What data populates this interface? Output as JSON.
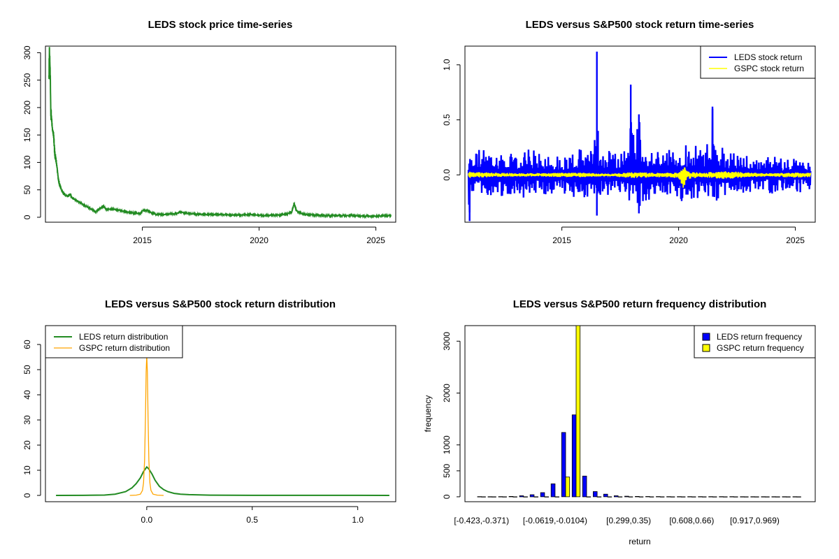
{
  "chart_data": [
    {
      "type": "line",
      "title": "LEDS stock price time-series",
      "xlabel": "",
      "ylabel": "",
      "xlim": [
        2010.85,
        2025.85
      ],
      "ylim": [
        -9,
        312
      ],
      "x_ticks": [
        2015,
        2020,
        2025
      ],
      "x_tick_labels": [
        "2015",
        "2020",
        "2025"
      ],
      "y_ticks": [
        0,
        50,
        100,
        150,
        200,
        250,
        300
      ],
      "y_tick_labels": [
        "0",
        "50",
        "100",
        "150",
        "200",
        "250",
        "300"
      ],
      "grid": false,
      "series": [
        {
          "color": "#228B22",
          "x": [
            2011.0,
            2011.02,
            2011.04,
            2011.06,
            2011.08,
            2011.1,
            2011.12,
            2011.15,
            2011.2,
            2011.25,
            2011.3,
            2011.35,
            2011.4,
            2011.45,
            2011.5,
            2011.55,
            2011.6,
            2011.7,
            2011.8,
            2011.9,
            2012.0,
            2012.2,
            2012.4,
            2012.6,
            2012.8,
            2013.0,
            2013.3,
            2013.5,
            2013.7,
            2014.0,
            2014.3,
            2014.6,
            2014.9,
            2015.0,
            2015.2,
            2015.4,
            2015.6,
            2015.9,
            2016.2,
            2016.5,
            2016.6,
            2016.9,
            2017.3,
            2017.7,
            2018.0,
            2018.4,
            2018.8,
            2019.2,
            2019.6,
            2020.0,
            2020.2,
            2020.6,
            2020.9,
            2021.2,
            2021.4,
            2021.5,
            2021.6,
            2021.8,
            2022.0,
            2022.5,
            2023.0,
            2023.5,
            2024.0,
            2024.5,
            2025.0,
            2025.5,
            2025.65
          ],
          "y": [
            250,
            305,
            285,
            250,
            190,
            185,
            175,
            160,
            150,
            115,
            105,
            90,
            70,
            60,
            55,
            48,
            45,
            40,
            38,
            42,
            35,
            30,
            25,
            20,
            15,
            10,
            20,
            14,
            15,
            13,
            10,
            8,
            6,
            12,
            13,
            8,
            5,
            5,
            6,
            7,
            10,
            7,
            6,
            5,
            5,
            5,
            4,
            4,
            5,
            4,
            3,
            4,
            4,
            6,
            10,
            25,
            12,
            7,
            5,
            4,
            3,
            3,
            3,
            2,
            2,
            3,
            3
          ]
        }
      ]
    },
    {
      "type": "line",
      "title": "LEDS versus S&P500 stock return time-series",
      "xlabel": "",
      "ylabel": "",
      "xlim": [
        2010.85,
        2025.85
      ],
      "ylim": [
        -0.43,
        1.17
      ],
      "x_ticks": [
        2015,
        2020,
        2025
      ],
      "x_tick_labels": [
        "2015",
        "2020",
        "2025"
      ],
      "y_ticks": [
        0.0,
        0.5,
        1.0
      ],
      "y_tick_labels": [
        "0.0",
        "0.5",
        "1.0"
      ],
      "grid": false,
      "legend": {
        "position": "top-right"
      },
      "series": [
        {
          "name": "LEDS stock return",
          "color": "#0000FF",
          "x": [
            2011.0,
            2011.05,
            2011.1,
            2011.2,
            2011.4,
            2011.7,
            2012.0,
            2012.5,
            2013.0,
            2013.5,
            2014.0,
            2014.5,
            2015.0,
            2015.5,
            2016.0,
            2016.4,
            2016.5,
            2016.55,
            2016.6,
            2017.0,
            2017.5,
            2017.9,
            2017.95,
            2018.0,
            2018.3,
            2018.5,
            2019.0,
            2019.5,
            2020.0,
            2020.2,
            2020.5,
            2021.0,
            2021.4,
            2021.45,
            2021.5,
            2022.0,
            2022.5,
            2023.0,
            2023.5,
            2024.0,
            2024.5,
            2025.0,
            2025.5,
            2025.65
          ],
          "pos_env": [
            0.15,
            0.2,
            0.18,
            0.22,
            0.25,
            0.24,
            0.2,
            0.22,
            0.18,
            0.24,
            0.22,
            0.2,
            0.18,
            0.22,
            0.25,
            0.3,
            1.12,
            0.4,
            0.2,
            0.25,
            0.22,
            0.3,
            0.82,
            0.38,
            0.55,
            0.25,
            0.22,
            0.25,
            0.2,
            0.28,
            0.3,
            0.25,
            0.35,
            0.62,
            0.3,
            0.25,
            0.22,
            0.2,
            0.15,
            0.18,
            0.15,
            0.16,
            0.12,
            0.12
          ],
          "neg_env": [
            -0.2,
            -0.42,
            -0.2,
            -0.18,
            -0.2,
            -0.22,
            -0.18,
            -0.2,
            -0.18,
            -0.22,
            -0.2,
            -0.18,
            -0.17,
            -0.2,
            -0.22,
            -0.25,
            -0.37,
            -0.3,
            -0.22,
            -0.2,
            -0.22,
            -0.25,
            -0.28,
            -0.24,
            -0.35,
            -0.25,
            -0.22,
            -0.2,
            -0.25,
            -0.3,
            -0.25,
            -0.22,
            -0.25,
            -0.28,
            -0.24,
            -0.22,
            -0.2,
            -0.18,
            -0.16,
            -0.17,
            -0.15,
            -0.17,
            -0.15,
            -0.14
          ]
        },
        {
          "name": "GSPC stock return",
          "color": "#FFFF00",
          "x": [
            2011.0,
            2012.0,
            2013.0,
            2014.0,
            2015.0,
            2016.0,
            2017.0,
            2018.0,
            2019.0,
            2020.0,
            2020.2,
            2020.4,
            2021.0,
            2022.0,
            2022.5,
            2023.0,
            2024.0,
            2025.0,
            2025.65
          ],
          "pos_env": [
            0.03,
            0.02,
            0.015,
            0.015,
            0.02,
            0.02,
            0.01,
            0.025,
            0.02,
            0.02,
            0.09,
            0.03,
            0.02,
            0.035,
            0.03,
            0.02,
            0.015,
            0.02,
            0.02
          ],
          "neg_env": [
            -0.03,
            -0.02,
            -0.015,
            -0.015,
            -0.02,
            -0.02,
            -0.01,
            -0.03,
            -0.02,
            -0.03,
            -0.12,
            -0.04,
            -0.02,
            -0.04,
            -0.03,
            -0.02,
            -0.015,
            -0.025,
            -0.02
          ]
        }
      ]
    },
    {
      "type": "line",
      "title": "LEDS versus S&P500 stock return distribution",
      "xlabel": "",
      "ylabel": "",
      "xlim": [
        -0.48,
        1.18
      ],
      "ylim": [
        -2.5,
        67.5
      ],
      "x_ticks": [
        0.0,
        0.5,
        1.0
      ],
      "x_tick_labels": [
        "0.0",
        "0.5",
        "1.0"
      ],
      "y_ticks": [
        0,
        10,
        20,
        30,
        40,
        50,
        60
      ],
      "y_tick_labels": [
        "0",
        "10",
        "20",
        "30",
        "40",
        "50",
        "60"
      ],
      "grid": false,
      "legend": {
        "position": "top-left"
      },
      "series": [
        {
          "name": "LEDS return distribution",
          "color": "#228B22",
          "x": [
            -0.43,
            -0.3,
            -0.2,
            -0.15,
            -0.1,
            -0.07,
            -0.05,
            -0.03,
            -0.015,
            0.0,
            0.01,
            0.025,
            0.04,
            0.06,
            0.08,
            0.1,
            0.13,
            0.16,
            0.2,
            0.3,
            0.5,
            0.8,
            1.0,
            1.15
          ],
          "y": [
            0.0,
            0.02,
            0.15,
            0.5,
            1.5,
            3.0,
            4.7,
            7.0,
            9.5,
            11.3,
            10.5,
            8.5,
            6.0,
            3.6,
            2.3,
            1.5,
            0.8,
            0.5,
            0.3,
            0.1,
            0.03,
            0.02,
            0.02,
            0.0
          ]
        },
        {
          "name": "GSPC return distribution",
          "color": "#FFA500",
          "x": [
            -0.08,
            -0.05,
            -0.03,
            -0.02,
            -0.015,
            -0.01,
            -0.006,
            -0.003,
            0.0,
            0.003,
            0.006,
            0.01,
            0.015,
            0.02,
            0.03,
            0.05,
            0.08
          ],
          "y": [
            0.0,
            0.1,
            0.5,
            2.0,
            5.0,
            14.0,
            32.0,
            49.0,
            55.5,
            49.0,
            32.0,
            14.0,
            5.0,
            2.0,
            0.5,
            0.1,
            0.0
          ]
        }
      ]
    },
    {
      "type": "bar",
      "title": "LEDS versus S&P500 return frequency distribution",
      "xlabel": "return",
      "ylabel": "frequency",
      "ylim": [
        -95,
        3300
      ],
      "y_ticks": [
        0,
        500,
        1000,
        2000,
        3000
      ],
      "y_tick_labels": [
        "0",
        "500",
        "1000",
        "2000",
        "3000"
      ],
      "x_tick_labels_shown": [
        "[-0.423,-0.371)",
        "[-0.0619,-0.0104)",
        "[0.299,0.35)",
        "[0.608,0.66)",
        "[0.917,0.969)"
      ],
      "x_tick_label_category_index": [
        0,
        7,
        14,
        20,
        26
      ],
      "grid": false,
      "legend": {
        "position": "top-right"
      },
      "category_count": 31,
      "series": [
        {
          "name": "LEDS return frequency",
          "color": "#0000FF",
          "values": [
            3,
            2,
            4,
            8,
            20,
            40,
            80,
            250,
            1240,
            1580,
            400,
            100,
            50,
            20,
            12,
            8,
            6,
            5,
            4,
            4,
            3,
            3,
            3,
            3,
            3,
            2,
            2,
            2,
            2,
            2,
            2
          ]
        },
        {
          "name": "GSPC return frequency",
          "color": "#FFFF00",
          "values": [
            0,
            0,
            0,
            0,
            0,
            0,
            0,
            0,
            380,
            3300,
            0,
            0,
            0,
            0,
            0,
            0,
            0,
            0,
            0,
            0,
            0,
            0,
            0,
            0,
            0,
            0,
            0,
            0,
            0,
            0,
            0
          ]
        }
      ]
    }
  ]
}
